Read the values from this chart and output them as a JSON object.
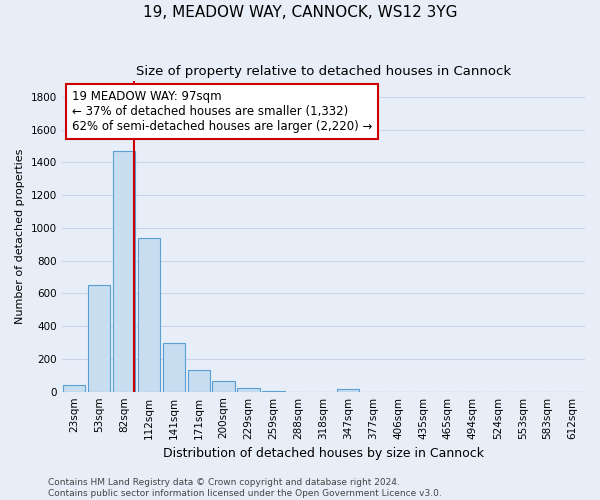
{
  "title": "19, MEADOW WAY, CANNOCK, WS12 3YG",
  "subtitle": "Size of property relative to detached houses in Cannock",
  "xlabel": "Distribution of detached houses by size in Cannock",
  "ylabel": "Number of detached properties",
  "bar_labels": [
    "23sqm",
    "53sqm",
    "82sqm",
    "112sqm",
    "141sqm",
    "171sqm",
    "200sqm",
    "229sqm",
    "259sqm",
    "288sqm",
    "318sqm",
    "347sqm",
    "377sqm",
    "406sqm",
    "435sqm",
    "465sqm",
    "494sqm",
    "524sqm",
    "553sqm",
    "583sqm",
    "612sqm"
  ],
  "bar_values": [
    40,
    650,
    1470,
    940,
    295,
    130,
    65,
    25,
    5,
    0,
    0,
    15,
    0,
    0,
    0,
    0,
    0,
    0,
    0,
    0,
    0
  ],
  "bar_color": "#c8ddf0",
  "bar_edge_color": "#5a9fd4",
  "vline_x": 2.4,
  "vline_color": "#cc0000",
  "ylim": [
    0,
    1900
  ],
  "yticks": [
    0,
    200,
    400,
    600,
    800,
    1000,
    1200,
    1400,
    1600,
    1800
  ],
  "annotation_box_text": "19 MEADOW WAY: 97sqm\n← 37% of detached houses are smaller (1,332)\n62% of semi-detached houses are larger (2,220) →",
  "annotation_box_color": "#ffffff",
  "annotation_box_edge_color": "#cc0000",
  "footer_line1": "Contains HM Land Registry data © Crown copyright and database right 2024.",
  "footer_line2": "Contains public sector information licensed under the Open Government Licence v3.0.",
  "background_color": "#e8eef8",
  "grid_color": "#c8d4e8",
  "title_fontsize": 11,
  "subtitle_fontsize": 9.5,
  "xlabel_fontsize": 9,
  "ylabel_fontsize": 8,
  "tick_fontsize": 7.5,
  "annotation_fontsize": 8.5,
  "footer_fontsize": 6.5
}
